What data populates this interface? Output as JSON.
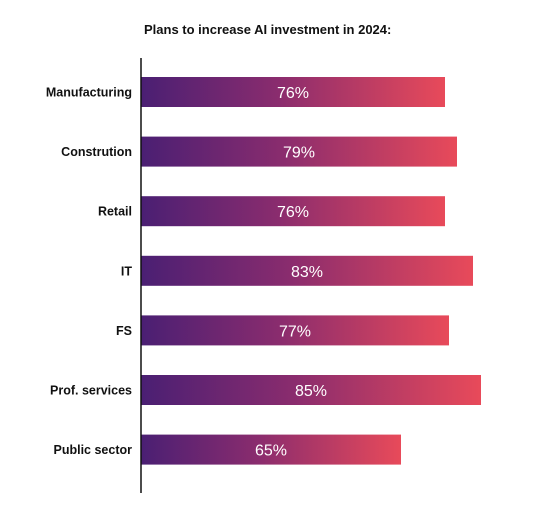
{
  "chart_data": {
    "type": "bar",
    "orientation": "horizontal",
    "title": "Plans to increase AI investment in 2024:",
    "categories": [
      "Manufacturing",
      "Constrution",
      "Retail",
      "IT",
      "FS",
      "Prof. services",
      "Public sector"
    ],
    "values": [
      76,
      79,
      76,
      83,
      77,
      85,
      65
    ],
    "value_labels": [
      "76%",
      "79%",
      "76%",
      "83%",
      "77%",
      "85%",
      "65%"
    ],
    "xlim": [
      0,
      100
    ],
    "value_suffix": "%",
    "grid": false,
    "legend": "none",
    "colors": {
      "gradient_start": "#4a1f73",
      "gradient_mid": "#8a2c6e",
      "gradient_end": "#e84a5a",
      "axis": "#111111",
      "label_text": "#ffffff"
    }
  }
}
